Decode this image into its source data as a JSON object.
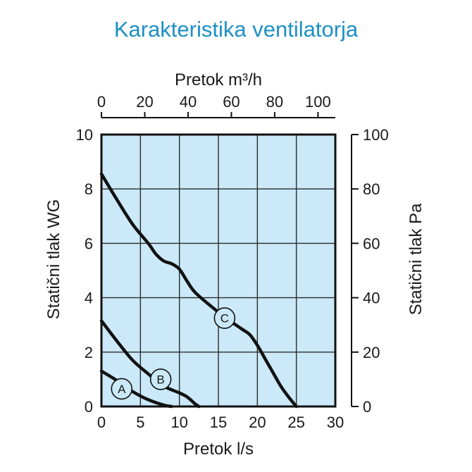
{
  "chart_data": {
    "type": "line",
    "title": "Karakteristika ventilatorja",
    "x_bottom": {
      "label": "Pretok l/s",
      "ticks": [
        0,
        5,
        10,
        15,
        20,
        25,
        30
      ],
      "range": [
        0,
        30
      ]
    },
    "x_top": {
      "label": "Pretok m³/h",
      "ticks": [
        0,
        20,
        40,
        60,
        80,
        100
      ],
      "range": [
        0,
        108
      ]
    },
    "y_left": {
      "label": "Statični tlak  WG",
      "ticks": [
        0,
        2,
        4,
        6,
        8,
        10
      ],
      "range": [
        0,
        10
      ]
    },
    "y_right": {
      "label": "Statični tlak  Pa",
      "ticks": [
        0,
        20,
        40,
        60,
        80,
        100
      ],
      "range": [
        0,
        100
      ]
    },
    "grid": true,
    "plot_background": "#cbe9f8",
    "line_color": "#111111",
    "series": [
      {
        "name": "A",
        "label_at": [
          2.6,
          0.65
        ],
        "x": [
          0,
          2,
          4,
          6,
          8,
          9
        ],
        "y": [
          1.3,
          0.95,
          0.55,
          0.25,
          0.05,
          0
        ]
      },
      {
        "name": "B",
        "label_at": [
          7.6,
          1.0
        ],
        "x": [
          0,
          2,
          4,
          6,
          8,
          10,
          11,
          12,
          12.5
        ],
        "y": [
          3.15,
          2.4,
          1.7,
          1.2,
          0.75,
          0.5,
          0.35,
          0.1,
          0
        ]
      },
      {
        "name": "C",
        "label_at": [
          15.8,
          3.25
        ],
        "x": [
          0,
          2,
          4,
          6,
          7,
          8,
          9,
          10,
          11,
          12,
          14,
          16,
          18,
          19,
          20,
          21,
          22,
          23,
          24,
          25
        ],
        "y": [
          8.55,
          7.6,
          6.7,
          6.0,
          5.6,
          5.35,
          5.25,
          5.05,
          4.6,
          4.2,
          3.7,
          3.25,
          2.85,
          2.65,
          2.25,
          1.75,
          1.25,
          0.75,
          0.35,
          0
        ]
      }
    ]
  }
}
